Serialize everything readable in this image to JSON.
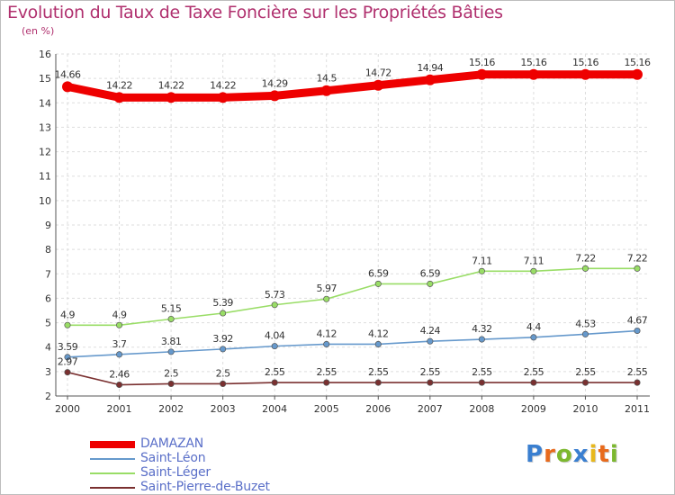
{
  "title": "Evolution du Taux de Taxe Foncière sur les Propriétés Bâties",
  "subtitle": "(en %)",
  "logo": {
    "text": "Proxiti",
    "letters": [
      {
        "ch": "P",
        "color": "#3a7fd0"
      },
      {
        "ch": "r",
        "color": "#e86a1c"
      },
      {
        "ch": "o",
        "color": "#7cb82f"
      },
      {
        "ch": "x",
        "color": "#3a7fd0"
      },
      {
        "ch": "i",
        "color": "#e8b81c"
      },
      {
        "ch": "t",
        "color": "#e86a1c"
      },
      {
        "ch": "i",
        "color": "#7cb82f"
      }
    ]
  },
  "chart_data": {
    "type": "line",
    "title": "Evolution du Taux de Taxe Foncière sur les Propriétés Bâties",
    "ylabel": "(en %)",
    "xlabel": "",
    "x": [
      "2000",
      "2001",
      "2002",
      "2003",
      "2004",
      "2005",
      "2006",
      "2007",
      "2008",
      "2009",
      "2010",
      "2011"
    ],
    "ylim": [
      2,
      16
    ],
    "yticks": [
      "2",
      "3",
      "4",
      "5",
      "6",
      "7",
      "8",
      "9",
      "10",
      "11",
      "12",
      "13",
      "14",
      "15",
      "16"
    ],
    "grid": true,
    "legend_position": "bottom-left",
    "series": [
      {
        "name": "DAMAZAN",
        "color": "#ee0000",
        "values": [
          14.66,
          14.22,
          14.22,
          14.22,
          14.29,
          14.5,
          14.72,
          14.94,
          15.16,
          15.16,
          15.16,
          15.16
        ],
        "labels": [
          "14.66",
          "14.22",
          "14.22",
          "14.22",
          "14.29",
          "14.5",
          "14.72",
          "14.94",
          "15.16",
          "15.16",
          "15.16",
          "15.16"
        ]
      },
      {
        "name": "Saint-Léon",
        "color": "#6699cc",
        "values": [
          3.59,
          3.7,
          3.81,
          3.92,
          4.04,
          4.12,
          4.12,
          4.24,
          4.32,
          4.4,
          4.53,
          4.67
        ],
        "labels": [
          "3.59",
          "3.7",
          "3.81",
          "3.92",
          "4.04",
          "4.12",
          "4.12",
          "4.24",
          "4.32",
          "4.4",
          "4.53",
          "4.67"
        ]
      },
      {
        "name": "Saint-Léger",
        "color": "#99dd66",
        "values": [
          4.9,
          4.9,
          5.15,
          5.39,
          5.73,
          5.97,
          6.59,
          6.59,
          7.11,
          7.11,
          7.22,
          7.22
        ],
        "labels": [
          "4.9",
          "4.9",
          "5.15",
          "5.39",
          "5.73",
          "5.97",
          "6.59",
          "6.59",
          "7.11",
          "7.11",
          "7.22",
          "7.22"
        ]
      },
      {
        "name": "Saint-Pierre-de-Buzet",
        "color": "#7a3030",
        "values": [
          2.97,
          2.46,
          2.5,
          2.5,
          2.55,
          2.55,
          2.55,
          2.55,
          2.55,
          2.55,
          2.55,
          2.55
        ],
        "labels": [
          "2.97",
          "2.46",
          "2.5",
          "2.5",
          "2.55",
          "2.55",
          "2.55",
          "2.55",
          "2.55",
          "2.55",
          "2.55",
          "2.55"
        ]
      }
    ]
  }
}
